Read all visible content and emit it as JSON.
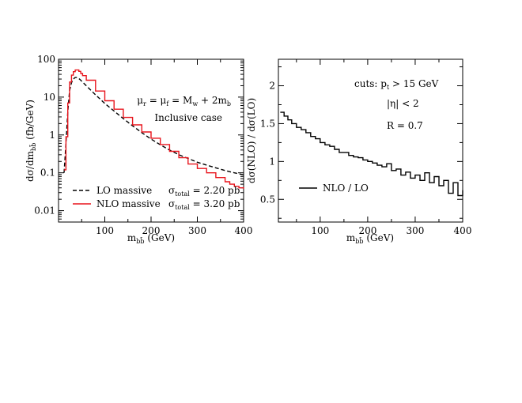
{
  "chart_data": [
    {
      "type": "line",
      "scale_y": "log",
      "xlim": [
        0,
        400
      ],
      "ylim": [
        0.005,
        100
      ],
      "xticks": [
        100,
        200,
        300,
        400
      ],
      "yticks": [
        0.01,
        0.1,
        1,
        10,
        100
      ],
      "ytick_labels": [
        "0.01",
        "0.1",
        "1",
        "10",
        "100"
      ],
      "xlabel": "m",
      "xlabel_sub": "bb̄",
      "xlabel_unit": "(GeV)",
      "ylabel": "dσ/dm",
      "ylabel_sub": "bb̄",
      "ylabel_unit": "(fb/GeV)",
      "annotations": [
        {
          "text_parts": [
            "μ",
            "r",
            " = μ",
            "f",
            " = M",
            "w",
            " + 2m",
            "b"
          ]
        },
        {
          "text": "Inclusive case"
        }
      ],
      "series": [
        {
          "name": "LO massive",
          "cross_section_label": "σ",
          "cross_section_sub": "total",
          "cross_section_value": "= 2.20 pb",
          "style": "dashed",
          "color": "#000000",
          "x": [
            12,
            16,
            20,
            24,
            28,
            32,
            36,
            40,
            44,
            48,
            60,
            80,
            100,
            120,
            140,
            160,
            180,
            200,
            220,
            240,
            260,
            280,
            300,
            320,
            340,
            360,
            380,
            400
          ],
          "y": [
            0.1,
            0.6,
            4,
            15,
            24,
            30,
            33,
            33,
            31,
            28,
            20,
            11.5,
            6.8,
            4.3,
            2.7,
            1.75,
            1.15,
            0.78,
            0.55,
            0.4,
            0.3,
            0.24,
            0.19,
            0.16,
            0.135,
            0.115,
            0.1,
            0.088
          ]
        },
        {
          "name": "NLO massive",
          "cross_section_label": "σ",
          "cross_section_sub": "total",
          "cross_section_value": "= 3.20 pb",
          "style": "step",
          "color": "#e8141c",
          "x": [
            12,
            16,
            20,
            24,
            28,
            32,
            36,
            40,
            44,
            48,
            52,
            60,
            80,
            100,
            120,
            140,
            160,
            180,
            200,
            220,
            240,
            260,
            280,
            300,
            320,
            340,
            360,
            370,
            380,
            390,
            400
          ],
          "y": [
            0.12,
            0.9,
            7,
            25,
            38,
            47,
            52,
            52,
            48,
            42,
            37,
            28,
            14.5,
            8,
            4.8,
            2.9,
            1.85,
            1.2,
            0.82,
            0.56,
            0.37,
            0.25,
            0.17,
            0.13,
            0.1,
            0.075,
            0.058,
            0.05,
            0.044,
            0.04,
            0.038
          ]
        }
      ]
    },
    {
      "type": "line",
      "xlim": [
        12,
        400
      ],
      "ylim": [
        0.2,
        2.35
      ],
      "xticks": [
        100,
        200,
        300,
        400
      ],
      "yticks": [
        0.5,
        1,
        1.5,
        2
      ],
      "ytick_labels": [
        "0.5",
        "1",
        "1.5",
        "2"
      ],
      "xlabel": "m",
      "xlabel_sub": "bb̄",
      "xlabel_unit": "(GeV)",
      "ylabel": "dσ(NLO) / dσ(LO)",
      "annotations": [
        {
          "text_parts": [
            "cuts: p",
            "t",
            " > 15 GeV"
          ]
        },
        {
          "text": "|η| < 2"
        },
        {
          "text": "R = 0.7"
        }
      ],
      "series": [
        {
          "name": "NLO / LO",
          "style": "step",
          "color": "#000000",
          "x": [
            16,
            24,
            32,
            40,
            50,
            60,
            70,
            80,
            90,
            100,
            110,
            120,
            130,
            140,
            150,
            160,
            170,
            180,
            190,
            200,
            210,
            220,
            230,
            240,
            250,
            260,
            270,
            280,
            290,
            300,
            310,
            320,
            330,
            340,
            350,
            360,
            370,
            380,
            390,
            400
          ],
          "y": [
            1.65,
            1.6,
            1.55,
            1.5,
            1.45,
            1.42,
            1.38,
            1.33,
            1.3,
            1.25,
            1.22,
            1.2,
            1.16,
            1.12,
            1.12,
            1.08,
            1.06,
            1.05,
            1.02,
            1.0,
            0.98,
            0.95,
            0.93,
            0.97,
            0.88,
            0.9,
            0.82,
            0.86,
            0.78,
            0.82,
            0.75,
            0.85,
            0.72,
            0.8,
            0.68,
            0.75,
            0.58,
            0.72,
            0.55,
            0.62
          ]
        }
      ]
    }
  ]
}
